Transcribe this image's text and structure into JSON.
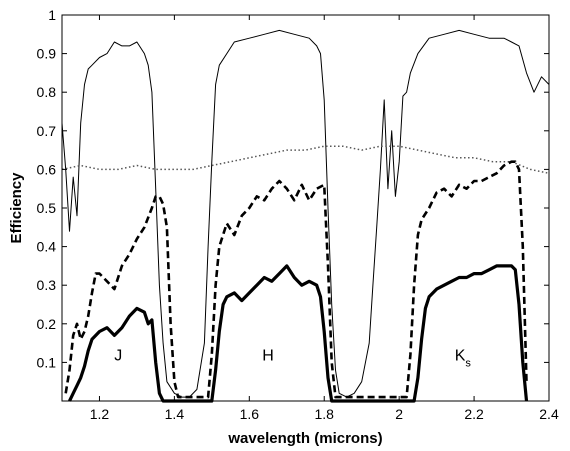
{
  "chart_data": {
    "type": "line",
    "xlabel": "wavelength (microns)",
    "ylabel": "Efficiency",
    "xlim": [
      1.1,
      2.4
    ],
    "ylim": [
      0.0,
      1.0
    ],
    "xticks": [
      1.2,
      1.4,
      1.6,
      1.8,
      2.0,
      2.2,
      2.4
    ],
    "xtick_labels": [
      "1.2",
      "1.4",
      "1.6",
      "1.8",
      "2",
      "2.2",
      "2.4"
    ],
    "yticks": [
      0.1,
      0.2,
      0.3,
      0.4,
      0.5,
      0.6,
      0.7,
      0.8,
      0.9,
      1.0
    ],
    "ytick_labels": [
      "0.1",
      "0.2",
      "0.3",
      "0.4",
      "0.5",
      "0.6",
      "0.7",
      "0.8",
      "0.9",
      "1"
    ],
    "grid": false,
    "band_labels": [
      {
        "text": "J",
        "x": 1.25,
        "y": 0.1
      },
      {
        "text": "H",
        "x": 1.65,
        "y": 0.1
      },
      {
        "text": "K",
        "subscript": "s",
        "x": 2.17,
        "y": 0.1
      }
    ],
    "series": [
      {
        "style": "thin-solid",
        "x": [
          1.1,
          1.11,
          1.12,
          1.13,
          1.14,
          1.15,
          1.16,
          1.17,
          1.18,
          1.2,
          1.22,
          1.24,
          1.26,
          1.28,
          1.3,
          1.32,
          1.33,
          1.34,
          1.35,
          1.36,
          1.37,
          1.38,
          1.4,
          1.42,
          1.44,
          1.46,
          1.48,
          1.49,
          1.5,
          1.51,
          1.52,
          1.54,
          1.56,
          1.6,
          1.64,
          1.68,
          1.72,
          1.76,
          1.78,
          1.79,
          1.8,
          1.81,
          1.82,
          1.83,
          1.84,
          1.86,
          1.88,
          1.9,
          1.92,
          1.93,
          1.94,
          1.95,
          1.96,
          1.97,
          1.98,
          1.99,
          2.0,
          2.01,
          2.02,
          2.03,
          2.05,
          2.08,
          2.12,
          2.16,
          2.2,
          2.24,
          2.28,
          2.3,
          2.32,
          2.34,
          2.36,
          2.38,
          2.4
        ],
        "y": [
          0.72,
          0.6,
          0.44,
          0.58,
          0.48,
          0.72,
          0.82,
          0.86,
          0.87,
          0.89,
          0.9,
          0.93,
          0.92,
          0.92,
          0.93,
          0.9,
          0.87,
          0.8,
          0.55,
          0.3,
          0.15,
          0.05,
          0.02,
          0.01,
          0.01,
          0.03,
          0.15,
          0.4,
          0.62,
          0.82,
          0.87,
          0.9,
          0.93,
          0.94,
          0.95,
          0.96,
          0.95,
          0.94,
          0.92,
          0.9,
          0.78,
          0.5,
          0.25,
          0.08,
          0.02,
          0.01,
          0.02,
          0.05,
          0.15,
          0.3,
          0.45,
          0.6,
          0.78,
          0.55,
          0.7,
          0.53,
          0.62,
          0.79,
          0.8,
          0.85,
          0.9,
          0.94,
          0.95,
          0.96,
          0.95,
          0.94,
          0.94,
          0.93,
          0.92,
          0.85,
          0.8,
          0.84,
          0.82
        ]
      },
      {
        "style": "dotted",
        "x": [
          1.1,
          1.15,
          1.2,
          1.25,
          1.3,
          1.35,
          1.4,
          1.45,
          1.5,
          1.55,
          1.6,
          1.65,
          1.7,
          1.75,
          1.8,
          1.85,
          1.9,
          1.95,
          2.0,
          2.05,
          2.1,
          2.15,
          2.2,
          2.25,
          2.3,
          2.35,
          2.4
        ],
        "y": [
          0.6,
          0.61,
          0.6,
          0.6,
          0.61,
          0.6,
          0.6,
          0.6,
          0.61,
          0.62,
          0.63,
          0.64,
          0.65,
          0.65,
          0.66,
          0.66,
          0.65,
          0.66,
          0.66,
          0.65,
          0.64,
          0.63,
          0.63,
          0.62,
          0.62,
          0.6,
          0.59
        ]
      },
      {
        "style": "dashed",
        "x": [
          1.11,
          1.12,
          1.13,
          1.14,
          1.15,
          1.16,
          1.17,
          1.18,
          1.19,
          1.2,
          1.22,
          1.24,
          1.26,
          1.28,
          1.3,
          1.32,
          1.34,
          1.35,
          1.36,
          1.37,
          1.38,
          1.39,
          1.4,
          1.41,
          1.49,
          1.5,
          1.51,
          1.52,
          1.54,
          1.56,
          1.58,
          1.6,
          1.62,
          1.64,
          1.66,
          1.68,
          1.7,
          1.72,
          1.74,
          1.76,
          1.78,
          1.8,
          1.81,
          1.82,
          1.83,
          2.02,
          2.03,
          2.04,
          2.05,
          2.06,
          2.08,
          2.1,
          2.12,
          2.14,
          2.16,
          2.18,
          2.2,
          2.22,
          2.24,
          2.26,
          2.28,
          2.3,
          2.31,
          2.32,
          2.33,
          2.34
        ],
        "y": [
          0.02,
          0.08,
          0.17,
          0.2,
          0.16,
          0.18,
          0.22,
          0.28,
          0.33,
          0.33,
          0.31,
          0.29,
          0.35,
          0.38,
          0.42,
          0.45,
          0.5,
          0.53,
          0.53,
          0.51,
          0.45,
          0.2,
          0.05,
          0.01,
          0.01,
          0.12,
          0.3,
          0.4,
          0.46,
          0.43,
          0.48,
          0.5,
          0.53,
          0.52,
          0.55,
          0.57,
          0.55,
          0.52,
          0.56,
          0.52,
          0.55,
          0.56,
          0.35,
          0.1,
          0.01,
          0.01,
          0.12,
          0.3,
          0.43,
          0.47,
          0.5,
          0.54,
          0.55,
          0.53,
          0.56,
          0.55,
          0.57,
          0.57,
          0.58,
          0.59,
          0.61,
          0.62,
          0.62,
          0.6,
          0.4,
          0.05
        ]
      },
      {
        "style": "thick-solid",
        "x": [
          1.12,
          1.13,
          1.14,
          1.15,
          1.16,
          1.17,
          1.18,
          1.2,
          1.22,
          1.24,
          1.26,
          1.28,
          1.3,
          1.32,
          1.33,
          1.34,
          1.35,
          1.36,
          1.37,
          1.5,
          1.51,
          1.52,
          1.53,
          1.54,
          1.56,
          1.58,
          1.6,
          1.62,
          1.64,
          1.66,
          1.68,
          1.7,
          1.72,
          1.74,
          1.76,
          1.78,
          1.79,
          1.8,
          1.81,
          1.82,
          2.04,
          2.05,
          2.06,
          2.07,
          2.08,
          2.1,
          2.12,
          2.14,
          2.16,
          2.18,
          2.2,
          2.22,
          2.24,
          2.26,
          2.28,
          2.3,
          2.31,
          2.32,
          2.33,
          2.34
        ],
        "y": [
          0.0,
          0.02,
          0.04,
          0.06,
          0.09,
          0.13,
          0.16,
          0.18,
          0.19,
          0.17,
          0.19,
          0.22,
          0.24,
          0.23,
          0.2,
          0.21,
          0.1,
          0.02,
          0.0,
          0.0,
          0.08,
          0.18,
          0.25,
          0.27,
          0.28,
          0.26,
          0.28,
          0.3,
          0.32,
          0.31,
          0.33,
          0.35,
          0.32,
          0.3,
          0.31,
          0.3,
          0.27,
          0.18,
          0.06,
          0.0,
          0.0,
          0.06,
          0.16,
          0.24,
          0.27,
          0.29,
          0.3,
          0.31,
          0.32,
          0.32,
          0.33,
          0.33,
          0.34,
          0.35,
          0.35,
          0.35,
          0.34,
          0.25,
          0.1,
          0.0
        ]
      }
    ]
  }
}
